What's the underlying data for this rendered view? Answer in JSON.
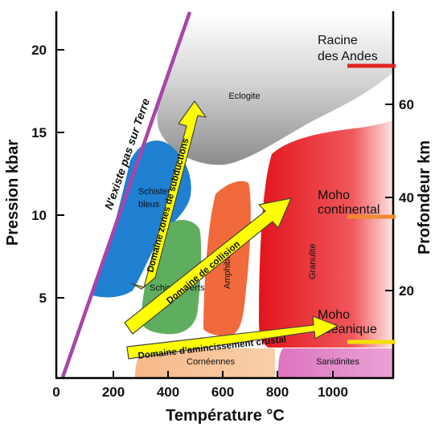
{
  "axes": {
    "x_title": "Température °C",
    "y_left_title": "Pression kbar",
    "y_right_title": "Profondeur km",
    "x_ticks": [
      "0",
      "200",
      "400",
      "600",
      "800",
      "1000"
    ],
    "y_left_ticks": [
      "5",
      "10",
      "15",
      "20"
    ],
    "y_right_ticks": [
      "20",
      "40",
      "60"
    ]
  },
  "zones": {
    "eclogite": "Eclogite",
    "schistes_bleus_line1": "Schistes",
    "schistes_bleus_line2": "bleus",
    "schistes_verts": "Schistes verts",
    "amphibolite": "Amphibolite",
    "granulite": "Granulite",
    "corneennes": "Cornéennes",
    "sanidinites": "Sanidinites"
  },
  "forbidden_zone_label": "N'existe pas sur Terre",
  "callouts": {
    "racine_line1": "Racine",
    "racine_line2": "des Andes",
    "moho_continental_line1": "Moho",
    "moho_continental_line2": "continental",
    "moho_oceanique_line1": "Moho",
    "moho_oceanique_line2": "océanique"
  },
  "arrows": {
    "subduction": "Domaine zones de subductions",
    "collision": "Domaine de collision",
    "amincissement": "Domaine d'amincissement crustal"
  },
  "colors": {
    "eclogite": "#9a9a9a",
    "schistes_bleus": "#1f7fd0",
    "schistes_verts": "#5fae5f",
    "amphibolite": "#f06a3c",
    "granulite": "#e8262a",
    "corneennes": "#f7b98a",
    "sanidinites": "#de7cc4",
    "arrow": "#ffff00",
    "forbidden_line": "#a845a8",
    "marker_racine": "#e02424",
    "marker_moho_continental": "#f08a30",
    "marker_moho_oceanique": "#f2e000"
  }
}
